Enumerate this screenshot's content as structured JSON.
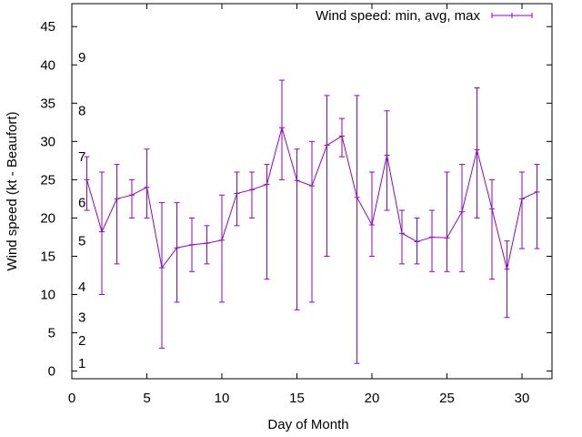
{
  "chart_data": {
    "type": "line",
    "title": "",
    "xlabel": "Day of Month",
    "ylabel": "Wind speed (kt - Beaufort)",
    "xlim": [
      0,
      32
    ],
    "ylim": [
      -1,
      48
    ],
    "x_ticks": [
      0,
      5,
      10,
      15,
      20,
      25,
      30
    ],
    "y_ticks": [
      0,
      5,
      10,
      15,
      20,
      25,
      30,
      35,
      40,
      45
    ],
    "grid": false,
    "legend_position": "top-right",
    "beaufort_labels": [
      {
        "label": "1",
        "value": 1
      },
      {
        "label": "2",
        "value": 4
      },
      {
        "label": "3",
        "value": 7
      },
      {
        "label": "4",
        "value": 11
      },
      {
        "label": "5",
        "value": 17
      },
      {
        "label": "6",
        "value": 22
      },
      {
        "label": "7",
        "value": 28
      },
      {
        "label": "8",
        "value": 34
      },
      {
        "label": "9",
        "value": 41
      }
    ],
    "series": [
      {
        "name": "Wind speed: min, avg, max",
        "color": "#9400d3",
        "x": [
          1,
          2,
          3,
          4,
          5,
          6,
          7,
          8,
          9,
          10,
          11,
          12,
          13,
          14,
          15,
          16,
          17,
          18,
          19,
          20,
          21,
          22,
          23,
          24,
          25,
          26,
          27,
          28,
          29,
          30,
          31
        ],
        "avg": [
          25,
          18.2,
          22.5,
          23,
          24,
          13.5,
          16.1,
          16.5,
          16.7,
          17.1,
          23.2,
          23.7,
          24.4,
          31.8,
          24.9,
          24.2,
          29.5,
          30.7,
          22.7,
          19.1,
          28.2,
          18,
          16.9,
          17.5,
          17.4,
          20.8,
          28.9,
          21.2,
          13.3,
          22.5,
          23.4
        ],
        "min": [
          21,
          10,
          14,
          20,
          20,
          3,
          9,
          13,
          14,
          9,
          19,
          20,
          12,
          25,
          8,
          9,
          15,
          28,
          1,
          15,
          21,
          14,
          14,
          13,
          13,
          13,
          20,
          12,
          7,
          16,
          16
        ],
        "max": [
          28,
          26,
          27,
          25,
          29,
          22,
          22,
          20,
          19,
          23,
          26,
          26,
          27,
          38,
          29,
          30,
          36,
          33,
          36,
          26,
          34,
          21,
          20,
          21,
          26,
          27,
          37,
          25,
          17,
          26,
          27
        ]
      }
    ]
  }
}
